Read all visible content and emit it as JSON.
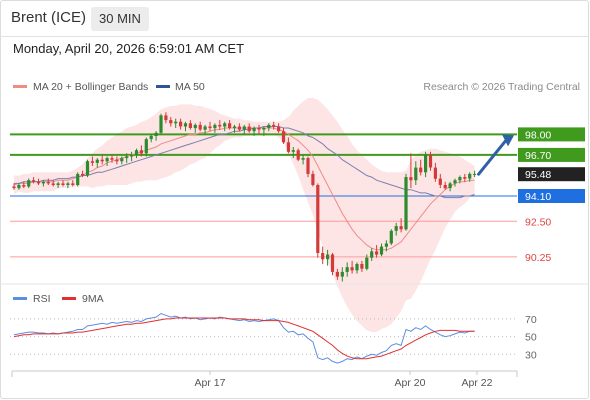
{
  "header": {
    "instrument": "Brent (ICE)",
    "timeframe": "30 MIN",
    "datetime": "Monday, April 20, 2026 6:59:01 AM CET"
  },
  "legend": {
    "items": [
      {
        "label": "MA 20 + Bollinger Bands",
        "color": "#f28b82"
      },
      {
        "label": "MA 50",
        "color": "#2f5597"
      }
    ],
    "copyright": "Research © 2026 Trading Central"
  },
  "colors": {
    "resistance": "#3f9a1e",
    "support": "#ff9a9a",
    "current": "#222222",
    "pivot": "#1f6fe0",
    "bull_candle": "#2d8a2d",
    "bear_candle": "#d43a3a",
    "band_fill": "#fde0e0",
    "ma20": "#ee8b8b",
    "ma50": "#7b7fb0",
    "arrow": "#2f5fa5",
    "rsi": "#5b8ee0",
    "rsi_ma": "#e03030"
  },
  "chart_data": [
    {
      "type": "candlestick",
      "price_range": [
        88.6,
        100.3
      ],
      "levels": [
        {
          "value": 98.0,
          "label": "98.00",
          "role": "resistance"
        },
        {
          "value": 96.7,
          "label": "96.70",
          "role": "resistance"
        },
        {
          "value": 95.48,
          "label": "95.48",
          "role": "current"
        },
        {
          "value": 94.1,
          "label": "94.10",
          "role": "pivot"
        },
        {
          "value": 92.5,
          "label": "92.50",
          "role": "support"
        },
        {
          "value": 90.25,
          "label": "90.25",
          "role": "support"
        }
      ],
      "candles": [
        [
          94.7,
          94.9,
          94.5,
          94.6
        ],
        [
          94.6,
          94.9,
          94.5,
          94.8
        ],
        [
          94.8,
          95.0,
          94.6,
          94.7
        ],
        [
          94.7,
          95.2,
          94.6,
          95.1
        ],
        [
          95.1,
          95.3,
          94.9,
          95.0
        ],
        [
          95.0,
          95.2,
          94.8,
          94.9
        ],
        [
          94.9,
          95.1,
          94.7,
          95.0
        ],
        [
          95.0,
          95.2,
          94.8,
          94.9
        ],
        [
          94.9,
          95.1,
          94.7,
          94.8
        ],
        [
          94.8,
          95.0,
          94.6,
          94.9
        ],
        [
          94.9,
          95.1,
          94.7,
          94.8
        ],
        [
          94.8,
          95.0,
          94.6,
          94.9
        ],
        [
          94.9,
          95.1,
          94.7,
          94.8
        ],
        [
          94.8,
          95.6,
          94.7,
          95.5
        ],
        [
          95.5,
          95.7,
          95.3,
          95.4
        ],
        [
          95.4,
          96.4,
          95.3,
          96.3
        ],
        [
          96.3,
          96.6,
          96.0,
          96.2
        ],
        [
          96.2,
          96.5,
          95.9,
          96.4
        ],
        [
          96.4,
          96.7,
          96.1,
          96.3
        ],
        [
          96.3,
          96.6,
          96.0,
          96.5
        ],
        [
          96.5,
          96.7,
          96.2,
          96.4
        ],
        [
          96.4,
          96.6,
          96.1,
          96.3
        ],
        [
          96.3,
          96.6,
          96.1,
          96.5
        ],
        [
          96.5,
          96.8,
          96.2,
          96.6
        ],
        [
          96.6,
          96.9,
          96.3,
          96.7
        ],
        [
          96.7,
          97.1,
          96.5,
          97.0
        ],
        [
          97.0,
          97.3,
          96.6,
          96.8
        ],
        [
          96.8,
          97.8,
          96.6,
          97.7
        ],
        [
          97.7,
          98.0,
          97.5,
          97.9
        ],
        [
          97.9,
          98.2,
          97.6,
          98.1
        ],
        [
          98.1,
          99.3,
          98.0,
          99.2
        ],
        [
          99.2,
          99.4,
          98.7,
          98.9
        ],
        [
          98.9,
          99.1,
          98.5,
          98.7
        ],
        [
          98.7,
          99.0,
          98.4,
          98.8
        ],
        [
          98.8,
          99.0,
          98.3,
          98.5
        ],
        [
          98.5,
          98.8,
          98.2,
          98.7
        ],
        [
          98.7,
          98.9,
          98.3,
          98.4
        ],
        [
          98.4,
          98.7,
          98.1,
          98.6
        ],
        [
          98.6,
          98.8,
          98.2,
          98.3
        ],
        [
          98.3,
          98.6,
          98.0,
          98.5
        ],
        [
          98.5,
          98.8,
          98.2,
          98.4
        ],
        [
          98.4,
          98.7,
          98.1,
          98.6
        ],
        [
          98.6,
          98.9,
          98.3,
          98.5
        ],
        [
          98.5,
          98.8,
          98.2,
          98.7
        ],
        [
          98.7,
          98.9,
          98.3,
          98.4
        ],
        [
          98.4,
          98.6,
          98.1,
          98.5
        ],
        [
          98.5,
          98.7,
          98.2,
          98.3
        ],
        [
          98.3,
          98.6,
          98.0,
          98.5
        ],
        [
          98.5,
          98.7,
          98.1,
          98.2
        ],
        [
          98.2,
          98.5,
          97.9,
          98.4
        ],
        [
          98.4,
          98.6,
          98.0,
          98.3
        ],
        [
          98.3,
          98.5,
          97.9,
          98.4
        ],
        [
          98.4,
          98.7,
          98.2,
          98.6
        ],
        [
          98.6,
          98.8,
          98.3,
          98.5
        ],
        [
          98.5,
          98.7,
          98.1,
          98.2
        ],
        [
          98.2,
          98.4,
          97.4,
          97.5
        ],
        [
          97.5,
          97.8,
          96.8,
          96.9
        ],
        [
          96.9,
          97.2,
          96.5,
          97.0
        ],
        [
          97.0,
          97.1,
          96.3,
          96.4
        ],
        [
          96.4,
          96.7,
          96.1,
          96.5
        ],
        [
          96.5,
          96.6,
          95.3,
          95.5
        ],
        [
          95.5,
          95.7,
          94.7,
          94.8
        ],
        [
          94.8,
          94.9,
          90.2,
          90.5
        ],
        [
          90.5,
          90.9,
          89.8,
          90.1
        ],
        [
          90.1,
          90.7,
          89.7,
          90.4
        ],
        [
          90.4,
          90.5,
          89.1,
          89.3
        ],
        [
          89.3,
          89.5,
          88.8,
          89.0
        ],
        [
          89.0,
          89.6,
          88.7,
          89.3
        ],
        [
          89.3,
          89.9,
          89.0,
          89.6
        ],
        [
          89.6,
          90.0,
          89.2,
          89.4
        ],
        [
          89.4,
          89.9,
          89.2,
          89.8
        ],
        [
          89.8,
          90.0,
          89.3,
          89.5
        ],
        [
          89.5,
          90.4,
          89.4,
          90.2
        ],
        [
          90.2,
          90.8,
          90.0,
          90.6
        ],
        [
          90.6,
          91.0,
          90.2,
          90.4
        ],
        [
          90.4,
          91.1,
          90.3,
          90.9
        ],
        [
          90.9,
          91.3,
          90.6,
          91.1
        ],
        [
          91.1,
          92.0,
          91.0,
          91.9
        ],
        [
          91.9,
          92.4,
          91.6,
          92.2
        ],
        [
          92.2,
          92.7,
          91.8,
          92.0
        ],
        [
          92.0,
          95.5,
          91.9,
          95.3
        ],
        [
          95.3,
          96.8,
          94.6,
          95.1
        ],
        [
          95.1,
          96.3,
          94.8,
          95.9
        ],
        [
          95.9,
          96.4,
          95.4,
          95.6
        ],
        [
          95.6,
          96.9,
          95.3,
          96.7
        ],
        [
          96.7,
          96.9,
          95.7,
          95.9
        ],
        [
          95.9,
          96.2,
          95.0,
          95.2
        ],
        [
          95.2,
          95.5,
          94.6,
          94.8
        ],
        [
          94.8,
          95.0,
          94.5,
          94.6
        ],
        [
          94.6,
          95.0,
          94.4,
          94.9
        ],
        [
          94.9,
          95.2,
          94.7,
          95.1
        ],
        [
          95.1,
          95.4,
          94.9,
          95.3
        ],
        [
          95.3,
          95.5,
          95.0,
          95.2
        ],
        [
          95.2,
          95.6,
          95.0,
          95.5
        ],
        [
          95.5,
          95.7,
          95.3,
          95.5
        ]
      ],
      "indicators": {
        "ma20": [
          94.8,
          94.9,
          94.9,
          94.9,
          95.0,
          95.0,
          95.0,
          95.0,
          95.0,
          95.1,
          95.1,
          95.1,
          95.2,
          95.3,
          95.4,
          95.6,
          95.7,
          95.9,
          96.0,
          96.2,
          96.3,
          96.4,
          96.5,
          96.6,
          96.7,
          96.8,
          96.9,
          97.0,
          97.1,
          97.2,
          97.4,
          97.5,
          97.6,
          97.7,
          97.8,
          97.9,
          98.0,
          98.0,
          98.1,
          98.1,
          98.2,
          98.3,
          98.3,
          98.4,
          98.4,
          98.4,
          98.4,
          98.4,
          98.4,
          98.4,
          98.4,
          98.4,
          98.4,
          98.4,
          98.3,
          98.2,
          98.0,
          97.8,
          97.6,
          97.3,
          97.0,
          96.6,
          96.0,
          95.4,
          94.8,
          94.2,
          93.6,
          93.0,
          92.5,
          92.0,
          91.6,
          91.3,
          91.0,
          90.8,
          90.7,
          90.7,
          90.7,
          90.8,
          91.0,
          91.2,
          91.6,
          92.0,
          92.4,
          92.8,
          93.2,
          93.6,
          93.9,
          94.2,
          94.5,
          94.7,
          94.9,
          95.0,
          95.0,
          95.1,
          95.1
        ],
        "ma50": [
          94.9,
          94.9,
          95.0,
          95.0,
          95.0,
          95.0,
          95.1,
          95.1,
          95.1,
          95.2,
          95.2,
          95.2,
          95.3,
          95.3,
          95.4,
          95.4,
          95.5,
          95.6,
          95.6,
          95.7,
          95.8,
          95.9,
          96.0,
          96.1,
          96.2,
          96.3,
          96.4,
          96.5,
          96.6,
          96.7,
          96.8,
          96.9,
          97.0,
          97.1,
          97.2,
          97.3,
          97.4,
          97.5,
          97.6,
          97.7,
          97.8,
          97.9,
          98.0,
          98.0,
          98.1,
          98.2,
          98.2,
          98.3,
          98.3,
          98.4,
          98.4,
          98.5,
          98.5,
          98.5,
          98.5,
          98.4,
          98.4,
          98.3,
          98.2,
          98.1,
          97.9,
          97.8,
          97.6,
          97.4,
          97.1,
          96.9,
          96.7,
          96.4,
          96.2,
          96.0,
          95.8,
          95.6,
          95.4,
          95.3,
          95.1,
          95.0,
          94.9,
          94.8,
          94.7,
          94.6,
          94.5,
          94.5,
          94.4,
          94.3,
          94.3,
          94.2,
          94.1,
          94.1,
          94.0,
          94.0,
          94.0,
          94.0,
          94.1,
          94.1,
          94.2
        ],
        "bb_upper": [
          95.4,
          95.4,
          95.5,
          95.5,
          95.6,
          95.6,
          95.6,
          95.6,
          95.6,
          95.6,
          95.6,
          95.6,
          95.7,
          95.9,
          96.1,
          96.5,
          96.8,
          97.1,
          97.3,
          97.6,
          97.8,
          98.0,
          98.2,
          98.4,
          98.5,
          98.6,
          98.8,
          98.9,
          99.1,
          99.3,
          99.6,
          99.7,
          99.8,
          99.8,
          99.9,
          99.9,
          99.9,
          99.8,
          99.8,
          99.7,
          99.6,
          99.5,
          99.3,
          99.2,
          99.1,
          99.0,
          99.0,
          98.9,
          98.9,
          98.8,
          98.8,
          98.8,
          98.8,
          98.8,
          98.8,
          98.9,
          99.1,
          99.5,
          99.8,
          100.1,
          100.3,
          100.3,
          100.2,
          99.9,
          99.6,
          99.2,
          98.8,
          98.3,
          97.9,
          97.4,
          97.0,
          96.7,
          96.4,
          96.1,
          95.9,
          95.7,
          95.6,
          95.6,
          95.6,
          95.6,
          95.7,
          96.4,
          96.7,
          96.9,
          97.0,
          97.1,
          97.1,
          97.0,
          96.9,
          96.8,
          96.7,
          96.6,
          96.4,
          96.2,
          96.0
        ],
        "bb_lower": [
          94.2,
          94.4,
          94.3,
          94.3,
          94.4,
          94.4,
          94.4,
          94.4,
          94.4,
          94.6,
          94.6,
          94.6,
          94.7,
          94.7,
          94.7,
          94.7,
          94.6,
          94.7,
          94.7,
          94.8,
          94.8,
          94.8,
          94.8,
          94.8,
          94.9,
          95.0,
          95.0,
          95.1,
          95.1,
          95.1,
          95.2,
          95.3,
          95.4,
          95.6,
          95.7,
          95.9,
          96.1,
          96.2,
          96.4,
          96.5,
          96.8,
          97.1,
          97.3,
          97.6,
          97.7,
          97.8,
          97.8,
          97.9,
          97.9,
          98.0,
          98.0,
          98.0,
          98.0,
          98.0,
          97.8,
          97.5,
          96.9,
          96.1,
          95.4,
          94.5,
          93.7,
          92.9,
          91.8,
          90.9,
          90.0,
          89.2,
          88.4,
          87.7,
          87.1,
          86.6,
          86.2,
          85.9,
          85.6,
          85.5,
          85.5,
          85.7,
          85.8,
          86.0,
          86.4,
          86.8,
          87.5,
          87.6,
          88.1,
          88.7,
          89.4,
          90.1,
          90.7,
          91.4,
          92.1,
          92.6,
          93.1,
          93.4,
          93.6,
          94.0,
          94.2
        ]
      },
      "forecast": {
        "from": 95.48,
        "to": 98.0
      }
    },
    {
      "type": "line",
      "legend": [
        {
          "label": "RSI",
          "color": "#5b8ee0"
        },
        {
          "label": "9MA",
          "color": "#e03030"
        }
      ],
      "ylim": [
        10,
        80
      ],
      "ticks": [
        "70",
        "50",
        "30"
      ],
      "x_labels": [
        "Apr 17",
        "Apr 20",
        "Apr 22"
      ],
      "series": [
        {
          "name": "RSI",
          "values": [
            52,
            53,
            54,
            55,
            55,
            54,
            54,
            53,
            54,
            53,
            54,
            55,
            56,
            58,
            58,
            62,
            63,
            64,
            65,
            64,
            66,
            65,
            66,
            67,
            66,
            68,
            67,
            70,
            71,
            72,
            76,
            74,
            72,
            73,
            71,
            72,
            70,
            71,
            69,
            70,
            71,
            70,
            72,
            71,
            70,
            69,
            68,
            69,
            67,
            68,
            67,
            68,
            69,
            70,
            68,
            60,
            55,
            56,
            52,
            53,
            48,
            44,
            26,
            24,
            26,
            22,
            20,
            22,
            25,
            24,
            27,
            25,
            28,
            30,
            29,
            32,
            34,
            40,
            42,
            40,
            58,
            56,
            60,
            58,
            62,
            58,
            55,
            52,
            50,
            51,
            53,
            55,
            54,
            56,
            56
          ]
        },
        {
          "name": "9MA",
          "values": [
            50,
            51,
            52,
            52,
            53,
            53,
            53,
            53,
            53,
            53,
            54,
            54,
            54,
            55,
            55,
            56,
            57,
            58,
            59,
            60,
            61,
            62,
            63,
            64,
            64,
            65,
            65,
            66,
            67,
            68,
            69,
            70,
            70,
            71,
            71,
            71,
            71,
            71,
            71,
            71,
            71,
            71,
            71,
            71,
            70,
            70,
            70,
            70,
            69,
            69,
            69,
            68,
            68,
            68,
            68,
            67,
            66,
            64,
            62,
            60,
            58,
            56,
            52,
            48,
            44,
            40,
            35,
            31,
            28,
            26,
            25,
            25,
            25,
            26,
            27,
            28,
            30,
            32,
            34,
            36,
            40,
            43,
            46,
            49,
            52,
            54,
            56,
            57,
            57,
            57,
            57,
            56,
            56,
            56,
            56
          ]
        }
      ]
    }
  ]
}
